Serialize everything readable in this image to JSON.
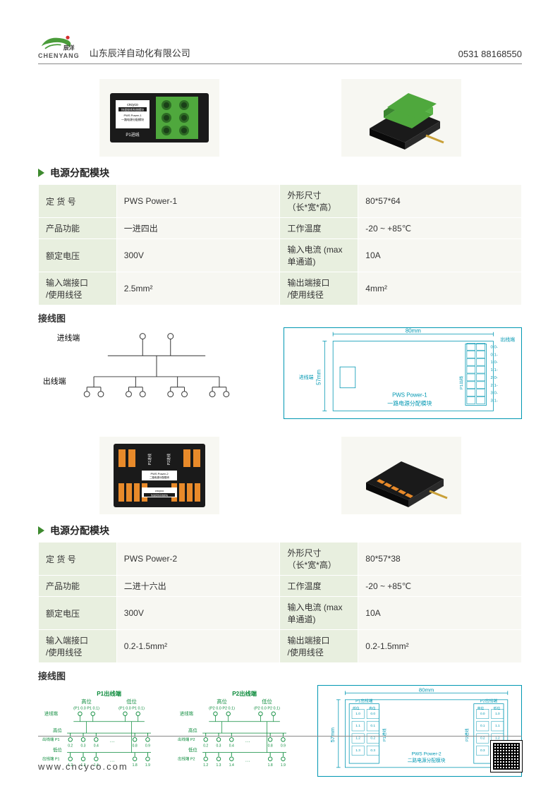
{
  "header": {
    "logo_text": "CHENYANG",
    "logo_cn": "辰洋",
    "company": "山东辰洋自动化有限公司",
    "phone": "0531 88168550",
    "logo_colors": {
      "swoosh": "#4a9c3a",
      "dot": "#d42e2e"
    }
  },
  "footer": {
    "url": "www.cncyco.com"
  },
  "colors": {
    "accent_green": "#3e8a2f",
    "cell_label_bg": "#e8efdf",
    "cell_value_bg": "#f7f7f2",
    "diagram_teal": "#0097b2",
    "product1_body": "#1a1a1a",
    "product1_terminal": "#4fa83d",
    "product2_body": "#1a1a1a",
    "product2_terminal": "#e88a2a"
  },
  "sections": [
    {
      "title": "电源分配模块",
      "product_label": {
        "brand": "cncyco",
        "line1": "快速接线系统模块",
        "line2": "PWS Power-1",
        "line3": "一路电源分配模块",
        "mark": "P1进线"
      },
      "rows": [
        {
          "l1": "定 货 号",
          "v1": "PWS Power-1",
          "l2": "外形尺寸\n（长*宽*高）",
          "v2": "80*57*64"
        },
        {
          "l1": "产品功能",
          "v1": "一进四出",
          "l2": "工作温度",
          "v2": "-20 ~ +85℃"
        },
        {
          "l1": "额定电压",
          "v1": "300V",
          "l2": "输入电流 (max单通道)",
          "v2": "10A"
        },
        {
          "l1": "输入端接口\n/使用线径",
          "v1": "2.5mm²",
          "l2": "输出端接口\n/使用线径",
          "v2": "4mm²"
        }
      ],
      "wiring": {
        "title": "接线图",
        "in_label": "进线端",
        "out_label": "出线端"
      },
      "dim": {
        "w": "80mm",
        "h": "57mm",
        "text1": "PWS Power-1",
        "text2": "一路电源分配模块",
        "in_label": "进线端",
        "out_label": "出线端",
        "conn": [
          "0.0-",
          "0.1-",
          "1.0-",
          "1.1-",
          "2.0-",
          "2.1-",
          "3.0-",
          "3.1-"
        ],
        "port": "P1出线"
      }
    },
    {
      "title": "电源分配模块",
      "product_label": {
        "brand": "cncyco",
        "line1": "快速接线系统模块",
        "line2": "PWS Power-2",
        "line3": "二路电源分配模块",
        "mark1": "P1进线",
        "mark2": "P2进线"
      },
      "rows": [
        {
          "l1": "定 货 号",
          "v1": "PWS Power-2",
          "l2": "外形尺寸\n（长*宽*高）",
          "v2": "80*57*38"
        },
        {
          "l1": "产品功能",
          "v1": "二进十六出",
          "l2": "工作温度",
          "v2": "-20 ~ +85℃"
        },
        {
          "l1": "额定电压",
          "v1": "300V",
          "l2": "输入电流 (max单通道)",
          "v2": "10A"
        },
        {
          "l1": "输入端接口\n/使用线径",
          "v1": "0.2-1.5mm²",
          "l2": "输出端接口\n/使用线径",
          "v2": "0.2-1.5mm²"
        }
      ],
      "wiring": {
        "title": "接线图",
        "groups": [
          {
            "head": "P1出线端",
            "in": "进线端",
            "hi": "高位",
            "lo": "低位",
            "hi_pins": "(P1 0.0  P1 0.1)",
            "lo_pins": "(P1 0.0  P1 0.1)",
            "out_hi": "出线端 P1",
            "hi_nums": [
              "0.2",
              "0.3",
              "0.4",
              "0.8",
              "0.9"
            ],
            "out_lo": "出线端 P1",
            "lo_nums": [
              "1.2",
              "1.3",
              "1.4",
              "1.8",
              "1.9"
            ]
          },
          {
            "head": "P2出线端",
            "in": "进线端",
            "hi": "高位",
            "lo": "低位",
            "hi_pins": "(P2 0.0  P2 0.1)",
            "lo_pins": "(P2 0.0  P2 0.1)",
            "out_hi": "出线端 P2",
            "hi_nums": [
              "0.2",
              "0.3",
              "0.4",
              "0.8",
              "0.9"
            ],
            "out_lo": "出线端 P2",
            "lo_nums": [
              "1.2",
              "1.3",
              "1.4",
              "1.8",
              "1.9"
            ]
          }
        ]
      },
      "dim": {
        "w": "80mm",
        "h": "57mm",
        "text1": "PWS Power-2",
        "text2": "二路电源分配模块",
        "left": {
          "head": "P1出线端",
          "hi": "高位",
          "lo": "低位",
          "port": "P1进线",
          "nums": [
            "1.0",
            "0.0",
            "1.1",
            "0.1",
            "1.2",
            "0.2",
            "1.3",
            "0.3"
          ]
        },
        "right": {
          "head": "P2出线端",
          "hi": "高位",
          "lo": "低位",
          "port": "P2进线",
          "nums": [
            "0.0",
            "1.0",
            "0.1",
            "1.1",
            "0.2",
            "1.2",
            "0.3",
            "1.3"
          ]
        }
      }
    }
  ]
}
